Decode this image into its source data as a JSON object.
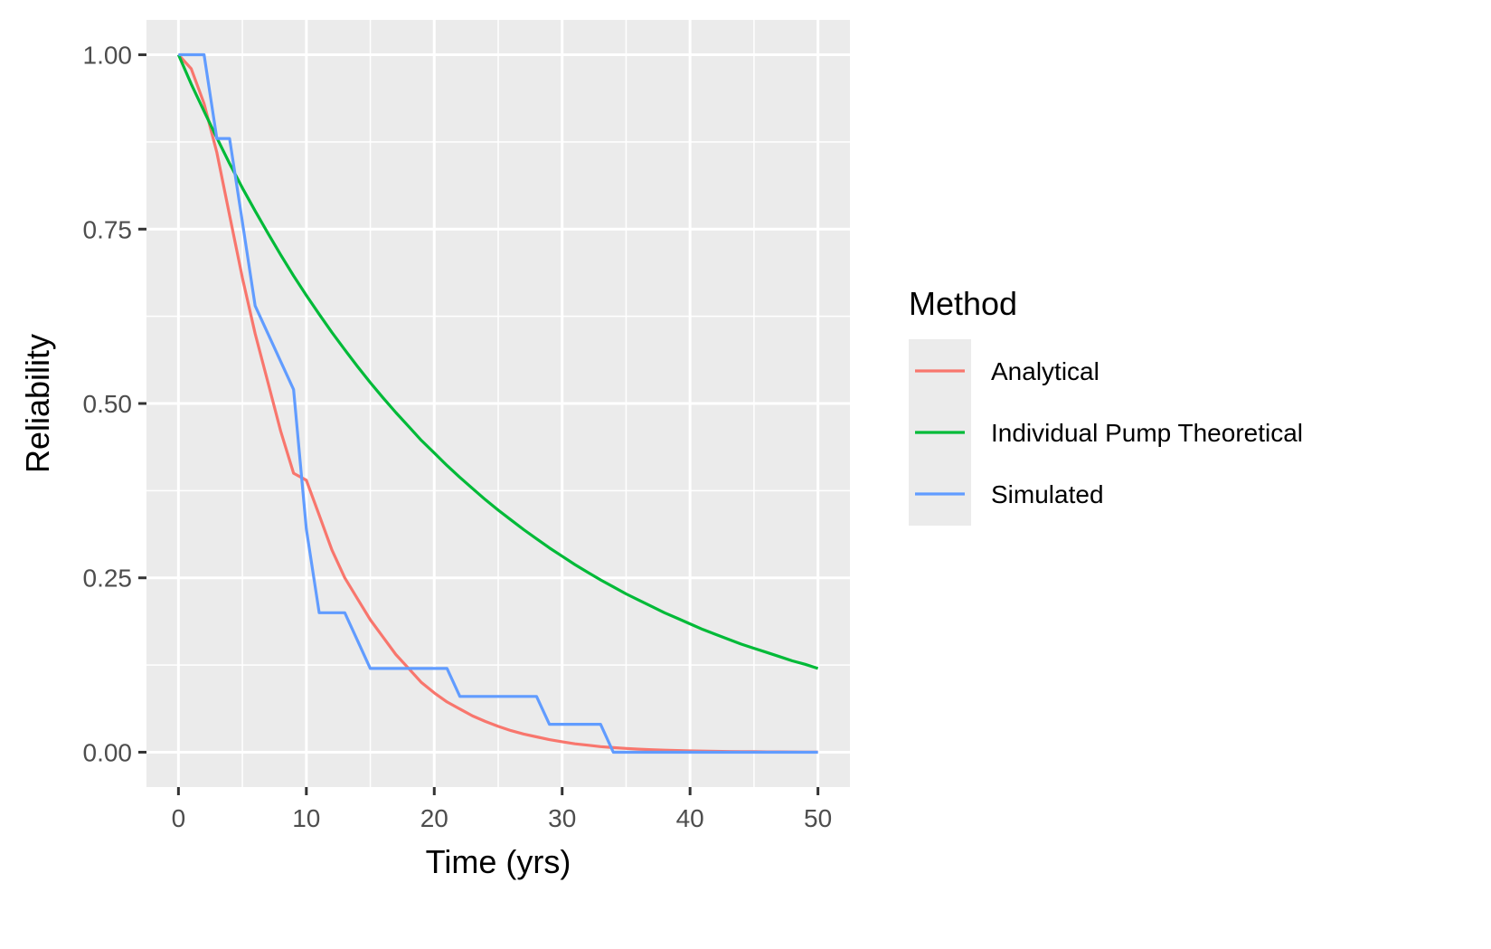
{
  "chart_data": {
    "type": "line",
    "xlabel": "Time (yrs)",
    "ylabel": "Reliability",
    "xlim": [
      -2.5,
      52.5
    ],
    "ylim": [
      -0.05,
      1.05
    ],
    "x_ticks": [
      0,
      10,
      20,
      30,
      40,
      50
    ],
    "x_tick_labels": [
      "0",
      "10",
      "20",
      "30",
      "40",
      "50"
    ],
    "y_ticks": [
      0,
      0.25,
      0.5,
      0.75,
      1
    ],
    "y_tick_labels": [
      "0.00",
      "0.25",
      "0.50",
      "0.75",
      "1.00"
    ],
    "grid": true,
    "panel_background": "#ebebeb",
    "grid_color": "#ffffff",
    "legend": {
      "title": "Method",
      "position": "right"
    },
    "series": [
      {
        "name": "Analytical",
        "color": "#f8766d",
        "x": [
          0,
          1,
          2,
          3,
          4,
          5,
          6,
          7,
          8,
          9,
          10,
          11,
          12,
          13,
          14,
          15,
          16,
          17,
          18,
          19,
          20,
          21,
          22,
          23,
          24,
          25,
          26,
          27,
          28,
          29,
          30,
          31,
          32,
          33,
          34,
          35,
          36,
          37,
          38,
          39,
          40,
          41,
          42,
          43,
          44,
          45,
          46,
          47,
          48,
          49,
          50
        ],
        "values": [
          1.0,
          0.98,
          0.93,
          0.86,
          0.77,
          0.68,
          0.6,
          0.53,
          0.46,
          0.4,
          0.39,
          0.34,
          0.29,
          0.25,
          0.22,
          0.19,
          0.165,
          0.14,
          0.12,
          0.1,
          0.085,
          0.072,
          0.062,
          0.052,
          0.044,
          0.037,
          0.031,
          0.026,
          0.022,
          0.018,
          0.015,
          0.012,
          0.01,
          0.008,
          0.0066,
          0.0054,
          0.0044,
          0.0036,
          0.0029,
          0.0024,
          0.0019,
          0.0016,
          0.0013,
          0.001,
          0.0008,
          0.0007,
          0.0005,
          0.0004,
          0.0003,
          0.0002,
          0.0002
        ]
      },
      {
        "name": "Individual Pump Theoretical",
        "color": "#00ba38",
        "x": [
          0,
          1,
          2,
          3,
          4,
          5,
          6,
          7,
          8,
          9,
          10,
          11,
          12,
          13,
          14,
          15,
          16,
          17,
          18,
          19,
          20,
          21,
          22,
          23,
          24,
          25,
          26,
          27,
          28,
          29,
          30,
          31,
          32,
          33,
          34,
          35,
          36,
          37,
          38,
          39,
          40,
          41,
          42,
          43,
          44,
          45,
          46,
          47,
          48,
          49,
          50
        ],
        "values": [
          1.0,
          0.958,
          0.919,
          0.881,
          0.844,
          0.809,
          0.776,
          0.744,
          0.713,
          0.683,
          0.655,
          0.628,
          0.602,
          0.577,
          0.553,
          0.53,
          0.508,
          0.487,
          0.467,
          0.447,
          0.429,
          0.411,
          0.394,
          0.378,
          0.362,
          0.347,
          0.333,
          0.319,
          0.306,
          0.293,
          0.281,
          0.269,
          0.258,
          0.247,
          0.237,
          0.227,
          0.218,
          0.209,
          0.2,
          0.192,
          0.184,
          0.176,
          0.169,
          0.162,
          0.155,
          0.149,
          0.143,
          0.137,
          0.131,
          0.126,
          0.12
        ]
      },
      {
        "name": "Simulated",
        "color": "#619cff",
        "x": [
          0,
          1,
          2,
          3,
          4,
          5,
          6,
          7,
          8,
          9,
          10,
          11,
          12,
          13,
          14,
          15,
          16,
          17,
          18,
          19,
          20,
          21,
          22,
          23,
          24,
          25,
          26,
          27,
          28,
          29,
          30,
          31,
          32,
          33,
          34,
          35,
          36,
          37,
          38,
          39,
          40,
          41,
          42,
          43,
          44,
          45,
          46,
          47,
          48,
          49,
          50
        ],
        "values": [
          1.0,
          1.0,
          1.0,
          0.88,
          0.88,
          0.76,
          0.64,
          0.6,
          0.56,
          0.52,
          0.32,
          0.2,
          0.2,
          0.2,
          0.16,
          0.12,
          0.12,
          0.12,
          0.12,
          0.12,
          0.12,
          0.12,
          0.08,
          0.08,
          0.08,
          0.08,
          0.08,
          0.08,
          0.08,
          0.04,
          0.04,
          0.04,
          0.04,
          0.04,
          0.0,
          0.0,
          0.0,
          0.0,
          0.0,
          0.0,
          0.0,
          0.0,
          0.0,
          0.0,
          0.0,
          0.0,
          0.0,
          0.0,
          0.0,
          0.0,
          0.0
        ]
      }
    ]
  }
}
